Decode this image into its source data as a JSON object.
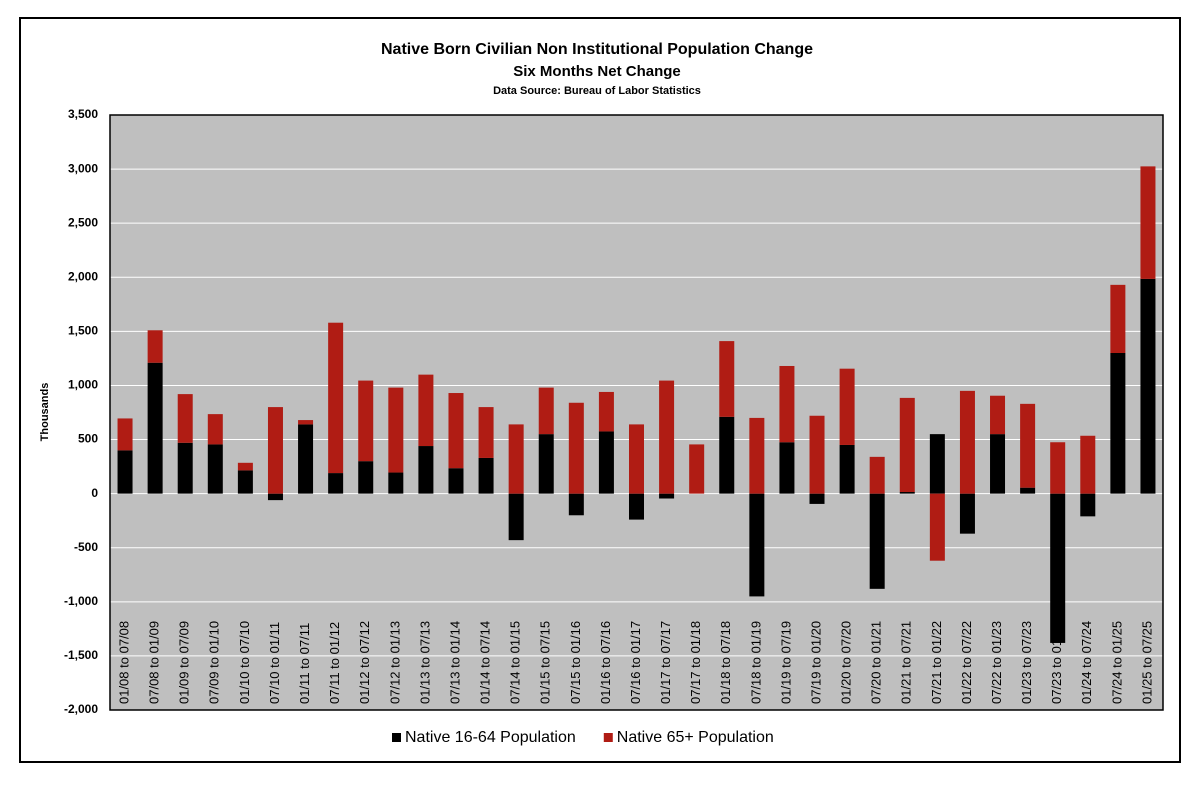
{
  "chart_data": {
    "type": "bar",
    "stacked": true,
    "title": "Native Born Civilian Non Institutional Population Change",
    "subtitle": "Six Months Net Change",
    "source": "Data Source: Bureau of Labor Statistics",
    "y_label": "Thousands",
    "categories": [
      "01/08 to 07/08",
      "07/08 to 01/09",
      "01/09 to 07/09",
      "07/09 to 01/10",
      "01/10 to 07/10",
      "07/10 to 01/11",
      "01/11 to 07/11",
      "07/11 to 01/12",
      "01/12 to 07/12",
      "07/12 to 01/13",
      "01/13 to 07/13",
      "07/13 to 01/14",
      "01/14 to 07/14",
      "07/14 to 01/15",
      "01/15 to 07/15",
      "07/15 to 01/16",
      "01/16 to 07/16",
      "07/16 to 01/17",
      "01/17 to 07/17",
      "07/17 to 01/18",
      "01/18 to 07/18",
      "07/18 to 01/19",
      "01/19 to 07/19",
      "07/19 to 01/20",
      "01/20 to 07/20",
      "07/20 to 01/21",
      "01/21 to 07/21",
      "07/21 to 01/22",
      "01/22 to 07/22",
      "07/22 to 01/23",
      "01/23 to 07/23",
      "07/23 to 01/24",
      "01/24 to 07/24",
      "07/24 to 01/25",
      "01/25 to 07/25"
    ],
    "series": [
      {
        "name": "Native 16-64 Population",
        "color": "#000000",
        "values": [
          400,
          1210,
          470,
          455,
          215,
          -60,
          640,
          190,
          300,
          195,
          440,
          235,
          330,
          -430,
          550,
          -200,
          575,
          -240,
          -45,
          0,
          710,
          -950,
          475,
          -95,
          450,
          -880,
          15,
          550,
          -370,
          550,
          55,
          -1380,
          -210,
          1300,
          1985
        ]
      },
      {
        "name": "Native 65+ Population",
        "color": "#b01c14",
        "values": [
          295,
          300,
          450,
          280,
          70,
          800,
          40,
          1390,
          745,
          785,
          660,
          695,
          470,
          640,
          430,
          840,
          365,
          640,
          1045,
          455,
          700,
          700,
          705,
          720,
          705,
          340,
          870,
          -620,
          950,
          355,
          775,
          475,
          535,
          630,
          1040
        ]
      }
    ],
    "ylim": [
      -2000,
      3500
    ],
    "yticks": [
      {
        "value": -2000,
        "label": "-2,000"
      },
      {
        "value": -1500,
        "label": "-1,500"
      },
      {
        "value": -1000,
        "label": "-1,000"
      },
      -500,
      0,
      500,
      {
        "value": 1000,
        "label": "1,000"
      },
      {
        "value": 1500,
        "label": "1,500"
      },
      {
        "value": 2000,
        "label": "2,000"
      },
      {
        "value": 2500,
        "label": "2,500"
      },
      {
        "value": 3000,
        "label": "3,000"
      },
      {
        "value": 3500,
        "label": "3,500"
      }
    ],
    "grid": true,
    "legend": "bottom"
  }
}
